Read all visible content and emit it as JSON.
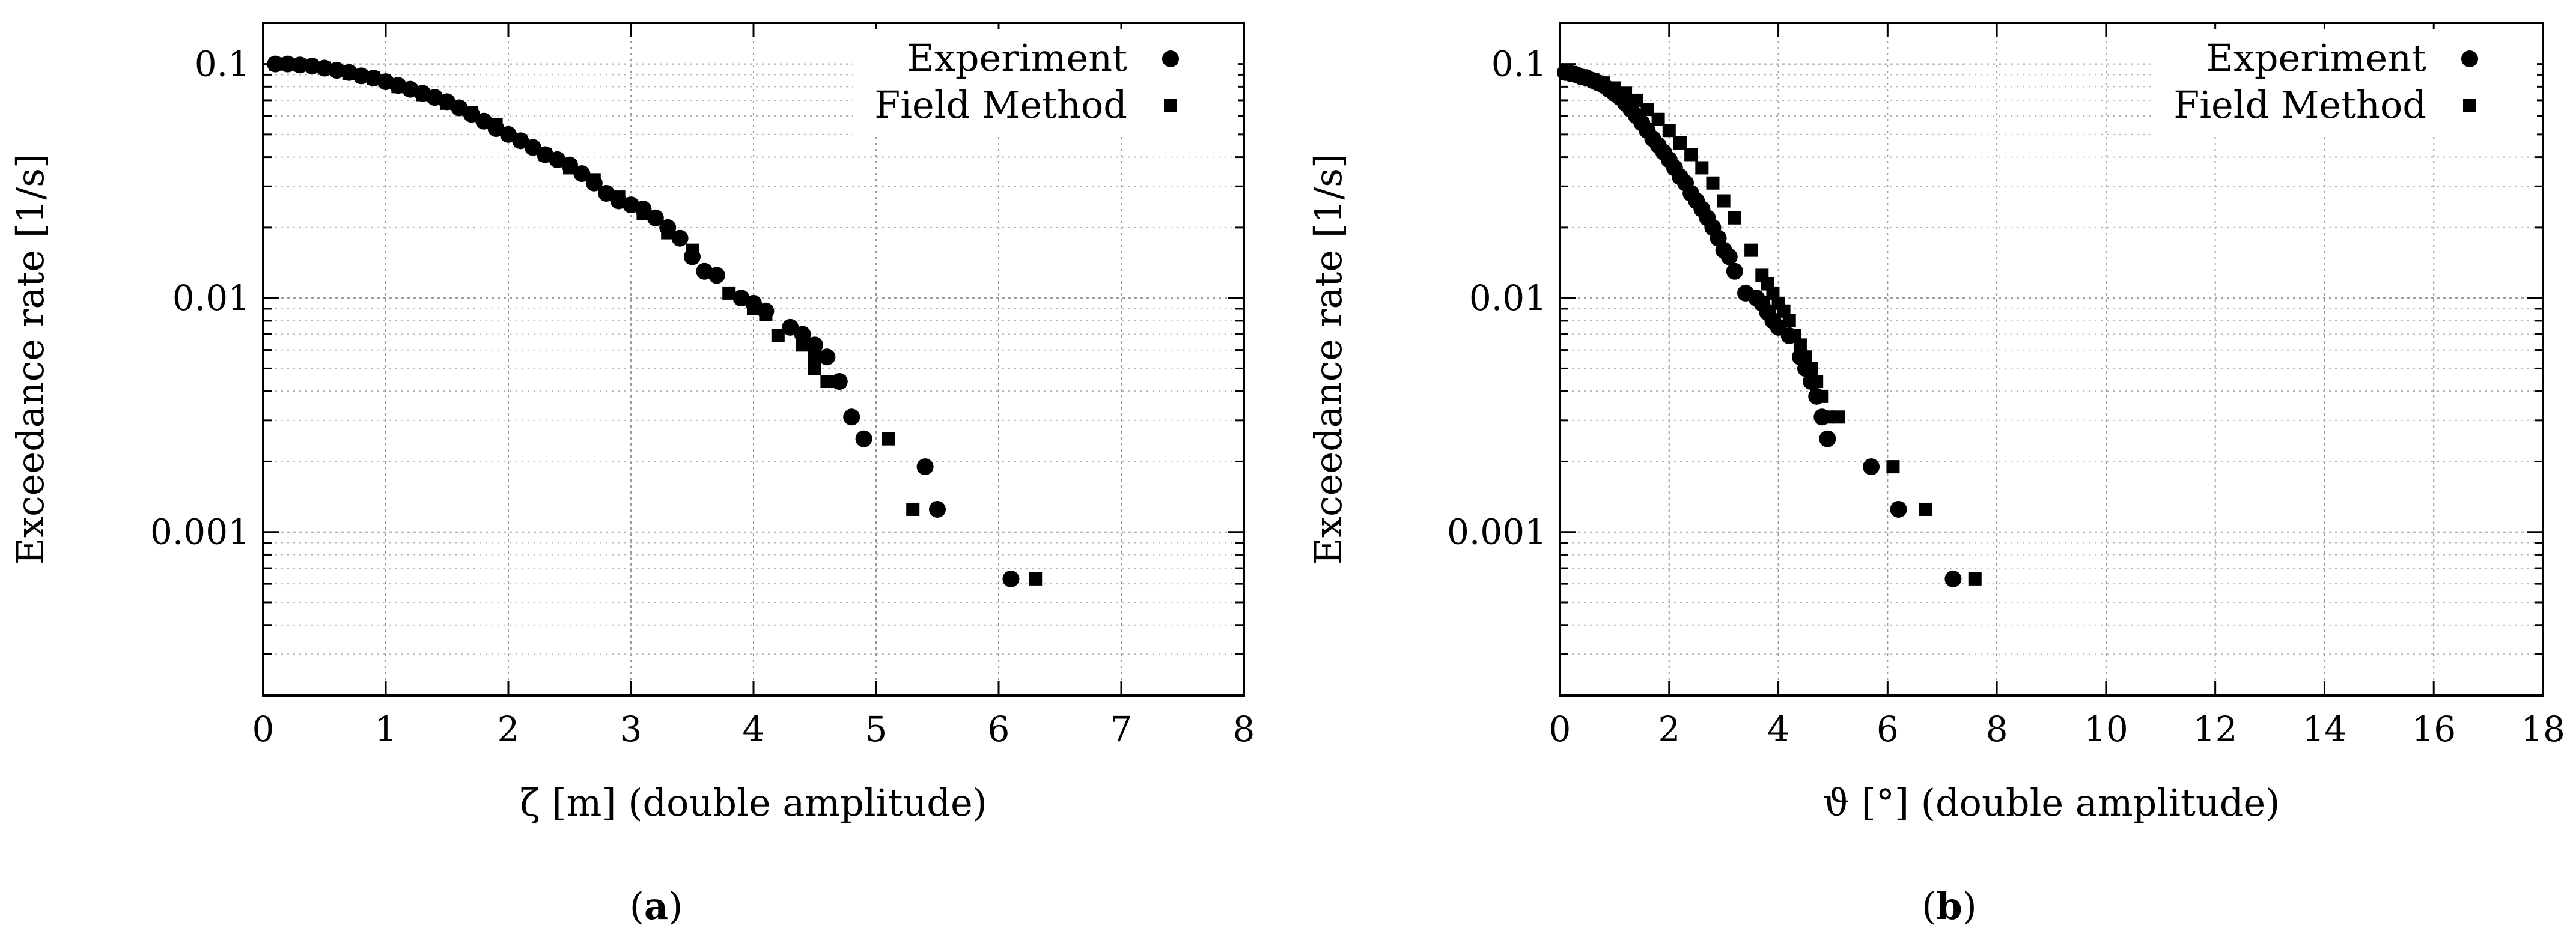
{
  "chart_data": [
    {
      "type": "scatter",
      "panel_label_open": "(",
      "panel_label_letter": "a",
      "panel_label_close": ")",
      "xlabel": "ζ [m] (double amplitude)",
      "ylabel": "Exceedance rate [1/s]",
      "xlim": [
        0,
        8
      ],
      "ylim": [
        0.0002,
        0.15
      ],
      "yscale": "log",
      "grid": true,
      "legend_position": "top-right",
      "xticks": [
        0,
        1,
        2,
        3,
        4,
        5,
        6,
        7,
        8
      ],
      "xtick_labels": [
        "0",
        "1",
        "2",
        "3",
        "4",
        "5",
        "6",
        "7",
        "8"
      ],
      "yticks": [
        0.001,
        0.01,
        0.1
      ],
      "ytick_labels": [
        "0.001",
        "0.01",
        "0.1"
      ],
      "series": [
        {
          "name": "Experiment",
          "marker": "circle",
          "points": [
            [
              0.1,
              0.1
            ],
            [
              0.2,
              0.1
            ],
            [
              0.3,
              0.099
            ],
            [
              0.4,
              0.098
            ],
            [
              0.5,
              0.096
            ],
            [
              0.6,
              0.094
            ],
            [
              0.7,
              0.092
            ],
            [
              0.8,
              0.089
            ],
            [
              0.9,
              0.087
            ],
            [
              1.0,
              0.084
            ],
            [
              1.1,
              0.081
            ],
            [
              1.2,
              0.078
            ],
            [
              1.3,
              0.075
            ],
            [
              1.4,
              0.072
            ],
            [
              1.5,
              0.069
            ],
            [
              1.6,
              0.065
            ],
            [
              1.7,
              0.061
            ],
            [
              1.8,
              0.057
            ],
            [
              1.9,
              0.053
            ],
            [
              2.0,
              0.05
            ],
            [
              2.1,
              0.047
            ],
            [
              2.2,
              0.044
            ],
            [
              2.3,
              0.041
            ],
            [
              2.4,
              0.039
            ],
            [
              2.5,
              0.037
            ],
            [
              2.6,
              0.034
            ],
            [
              2.7,
              0.031
            ],
            [
              2.8,
              0.028
            ],
            [
              2.9,
              0.026
            ],
            [
              3.0,
              0.025
            ],
            [
              3.1,
              0.024
            ],
            [
              3.2,
              0.022
            ],
            [
              3.3,
              0.02
            ],
            [
              3.4,
              0.018
            ],
            [
              3.5,
              0.015
            ],
            [
              3.6,
              0.013
            ],
            [
              3.7,
              0.0125
            ],
            [
              3.9,
              0.01
            ],
            [
              4.0,
              0.0095
            ],
            [
              4.1,
              0.0088
            ],
            [
              4.3,
              0.0075
            ],
            [
              4.4,
              0.007
            ],
            [
              4.5,
              0.0063
            ],
            [
              4.6,
              0.0056
            ],
            [
              4.7,
              0.0044
            ],
            [
              4.8,
              0.0031
            ],
            [
              4.9,
              0.0025
            ],
            [
              5.4,
              0.0019
            ],
            [
              5.5,
              0.00125
            ],
            [
              6.1,
              0.00063
            ]
          ]
        },
        {
          "name": "Field Method",
          "marker": "square",
          "points": [
            [
              0.1,
              0.1
            ],
            [
              0.3,
              0.099
            ],
            [
              0.5,
              0.096
            ],
            [
              0.7,
              0.091
            ],
            [
              0.9,
              0.087
            ],
            [
              1.1,
              0.08
            ],
            [
              1.3,
              0.074
            ],
            [
              1.5,
              0.068
            ],
            [
              1.7,
              0.062
            ],
            [
              1.9,
              0.055
            ],
            [
              2.1,
              0.047
            ],
            [
              2.3,
              0.041
            ],
            [
              2.5,
              0.036
            ],
            [
              2.7,
              0.032
            ],
            [
              2.9,
              0.027
            ],
            [
              3.1,
              0.023
            ],
            [
              3.3,
              0.019
            ],
            [
              3.5,
              0.016
            ],
            [
              3.8,
              0.0105
            ],
            [
              4.0,
              0.009
            ],
            [
              4.1,
              0.0085
            ],
            [
              4.2,
              0.0069
            ],
            [
              4.4,
              0.0063
            ],
            [
              4.5,
              0.0056
            ],
            [
              4.5,
              0.005
            ],
            [
              4.6,
              0.0044
            ],
            [
              4.7,
              0.0044
            ],
            [
              5.1,
              0.0025
            ],
            [
              5.3,
              0.00125
            ],
            [
              6.3,
              0.00063
            ]
          ]
        }
      ]
    },
    {
      "type": "scatter",
      "panel_label_open": "(",
      "panel_label_letter": "b",
      "panel_label_close": ")",
      "xlabel": "ϑ [°] (double amplitude)",
      "ylabel": "Exceedance rate [1/s]",
      "xlim": [
        0,
        18
      ],
      "ylim": [
        0.0002,
        0.15
      ],
      "yscale": "log",
      "grid": true,
      "legend_position": "top-right",
      "xticks": [
        0,
        2,
        4,
        6,
        8,
        10,
        12,
        14,
        16,
        18
      ],
      "xtick_labels": [
        "0",
        "2",
        "4",
        "6",
        "8",
        "10",
        "12",
        "14",
        "16",
        "18"
      ],
      "yticks": [
        0.001,
        0.01,
        0.1
      ],
      "ytick_labels": [
        "0.001",
        "0.01",
        "0.1"
      ],
      "series": [
        {
          "name": "Experiment",
          "marker": "circle",
          "points": [
            [
              0.1,
              0.092
            ],
            [
              0.2,
              0.091
            ],
            [
              0.3,
              0.09
            ],
            [
              0.4,
              0.088
            ],
            [
              0.5,
              0.087
            ],
            [
              0.6,
              0.085
            ],
            [
              0.7,
              0.083
            ],
            [
              0.8,
              0.081
            ],
            [
              0.9,
              0.078
            ],
            [
              1.0,
              0.075
            ],
            [
              1.1,
              0.072
            ],
            [
              1.2,
              0.068
            ],
            [
              1.3,
              0.064
            ],
            [
              1.4,
              0.06
            ],
            [
              1.5,
              0.056
            ],
            [
              1.6,
              0.052
            ],
            [
              1.7,
              0.048
            ],
            [
              1.8,
              0.045
            ],
            [
              1.9,
              0.042
            ],
            [
              2.0,
              0.039
            ],
            [
              2.1,
              0.036
            ],
            [
              2.2,
              0.033
            ],
            [
              2.3,
              0.031
            ],
            [
              2.4,
              0.028
            ],
            [
              2.5,
              0.026
            ],
            [
              2.6,
              0.024
            ],
            [
              2.7,
              0.022
            ],
            [
              2.8,
              0.02
            ],
            [
              2.9,
              0.018
            ],
            [
              3.0,
              0.016
            ],
            [
              3.1,
              0.015
            ],
            [
              3.2,
              0.013
            ],
            [
              3.4,
              0.0105
            ],
            [
              3.6,
              0.01
            ],
            [
              3.7,
              0.0095
            ],
            [
              3.8,
              0.0087
            ],
            [
              3.9,
              0.008
            ],
            [
              4.0,
              0.0075
            ],
            [
              4.2,
              0.0069
            ],
            [
              4.4,
              0.0056
            ],
            [
              4.5,
              0.005
            ],
            [
              4.6,
              0.0044
            ],
            [
              4.7,
              0.0038
            ],
            [
              4.8,
              0.0031
            ],
            [
              4.9,
              0.0025
            ],
            [
              5.7,
              0.0019
            ],
            [
              6.2,
              0.00125
            ],
            [
              7.2,
              0.00063
            ]
          ]
        },
        {
          "name": "Field Method",
          "marker": "square",
          "points": [
            [
              0.2,
              0.092
            ],
            [
              0.4,
              0.089
            ],
            [
              0.6,
              0.086
            ],
            [
              0.8,
              0.083
            ],
            [
              1.0,
              0.079
            ],
            [
              1.2,
              0.075
            ],
            [
              1.4,
              0.07
            ],
            [
              1.6,
              0.064
            ],
            [
              1.8,
              0.058
            ],
            [
              2.0,
              0.052
            ],
            [
              2.2,
              0.046
            ],
            [
              2.4,
              0.041
            ],
            [
              2.6,
              0.036
            ],
            [
              2.8,
              0.031
            ],
            [
              3.0,
              0.026
            ],
            [
              3.2,
              0.022
            ],
            [
              3.5,
              0.016
            ],
            [
              3.7,
              0.0125
            ],
            [
              3.8,
              0.0115
            ],
            [
              3.9,
              0.0105
            ],
            [
              4.0,
              0.0095
            ],
            [
              4.1,
              0.0088
            ],
            [
              4.2,
              0.008
            ],
            [
              4.3,
              0.0069
            ],
            [
              4.4,
              0.0063
            ],
            [
              4.5,
              0.0056
            ],
            [
              4.6,
              0.005
            ],
            [
              4.7,
              0.0044
            ],
            [
              4.8,
              0.0038
            ],
            [
              4.9,
              0.0031
            ],
            [
              5.1,
              0.0031
            ],
            [
              6.1,
              0.0019
            ],
            [
              6.7,
              0.00125
            ],
            [
              7.6,
              0.00063
            ]
          ]
        }
      ]
    }
  ]
}
